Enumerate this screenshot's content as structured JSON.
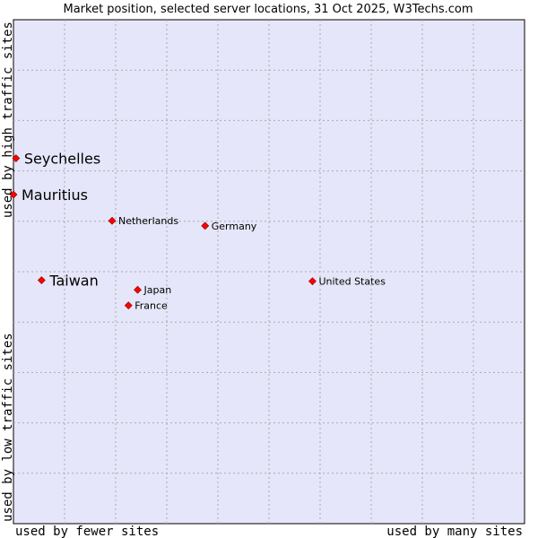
{
  "chart_data": {
    "type": "scatter",
    "title": "Market position, selected server locations, 31 Oct 2025, W3Techs.com",
    "xlabel_low": "used by fewer sites",
    "xlabel_high": "used by many sites",
    "ylabel_low": "used by low traffic sites",
    "ylabel_high": "used by high traffic sites",
    "xlim": [
      0,
      100
    ],
    "ylim": [
      0,
      100
    ],
    "grid": true,
    "colors": {
      "plot_bg": "#e6e6fa",
      "point": "#ff0000",
      "grid": "#aaaaaa"
    },
    "points": [
      {
        "name": "Seychelles",
        "x": 0.5,
        "y": 72.5,
        "highlight": true
      },
      {
        "name": "Mauritius",
        "x": 0.0,
        "y": 65.3,
        "highlight": true
      },
      {
        "name": "Netherlands",
        "x": 19.3,
        "y": 60.1,
        "highlight": false
      },
      {
        "name": "Germany",
        "x": 37.5,
        "y": 59.1,
        "highlight": false
      },
      {
        "name": "Taiwan",
        "x": 5.5,
        "y": 48.3,
        "highlight": true
      },
      {
        "name": "United States",
        "x": 58.5,
        "y": 48.1,
        "highlight": false
      },
      {
        "name": "Japan",
        "x": 24.3,
        "y": 46.4,
        "highlight": false
      },
      {
        "name": "France",
        "x": 22.5,
        "y": 43.3,
        "highlight": false
      }
    ]
  }
}
